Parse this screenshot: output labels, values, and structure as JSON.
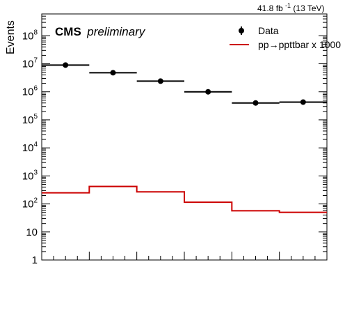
{
  "chart_data": {
    "type": "histogram",
    "ylabel": "Events",
    "yscale": "log",
    "ylim": [
      1,
      600000000
    ],
    "xlim": [
      0,
      6
    ],
    "lumi_label": "41.8 fb",
    "lumi_exponent": "-1",
    "lumi_energy": "(13 TeV)",
    "experiment_label": "CMS",
    "status_label": "preliminary",
    "legend_position": "top-right",
    "y_tick_labels": [
      {
        "value": 1,
        "base": "1",
        "exp": ""
      },
      {
        "value": 10,
        "base": "10",
        "exp": ""
      },
      {
        "value": 100,
        "base": "10",
        "exp": "2"
      },
      {
        "value": 1000,
        "base": "10",
        "exp": "3"
      },
      {
        "value": 10000,
        "base": "10",
        "exp": "4"
      },
      {
        "value": 100000,
        "base": "10",
        "exp": "5"
      },
      {
        "value": 1000000,
        "base": "10",
        "exp": "6"
      },
      {
        "value": 10000000,
        "base": "10",
        "exp": "7"
      },
      {
        "value": 100000000,
        "base": "10",
        "exp": "8"
      }
    ],
    "x_bin_edges": [
      0,
      1,
      2,
      3,
      4,
      5,
      6
    ],
    "series": [
      {
        "name": "Data",
        "style": "points",
        "color": "#000000",
        "values": [
          9000000,
          4800000,
          2400000,
          1000000,
          400000,
          430000
        ]
      },
      {
        "name": "pp→ppttbar x 1000",
        "style": "step",
        "color": "#cc0000",
        "values": [
          250,
          420,
          270,
          115,
          57,
          50
        ]
      }
    ]
  }
}
